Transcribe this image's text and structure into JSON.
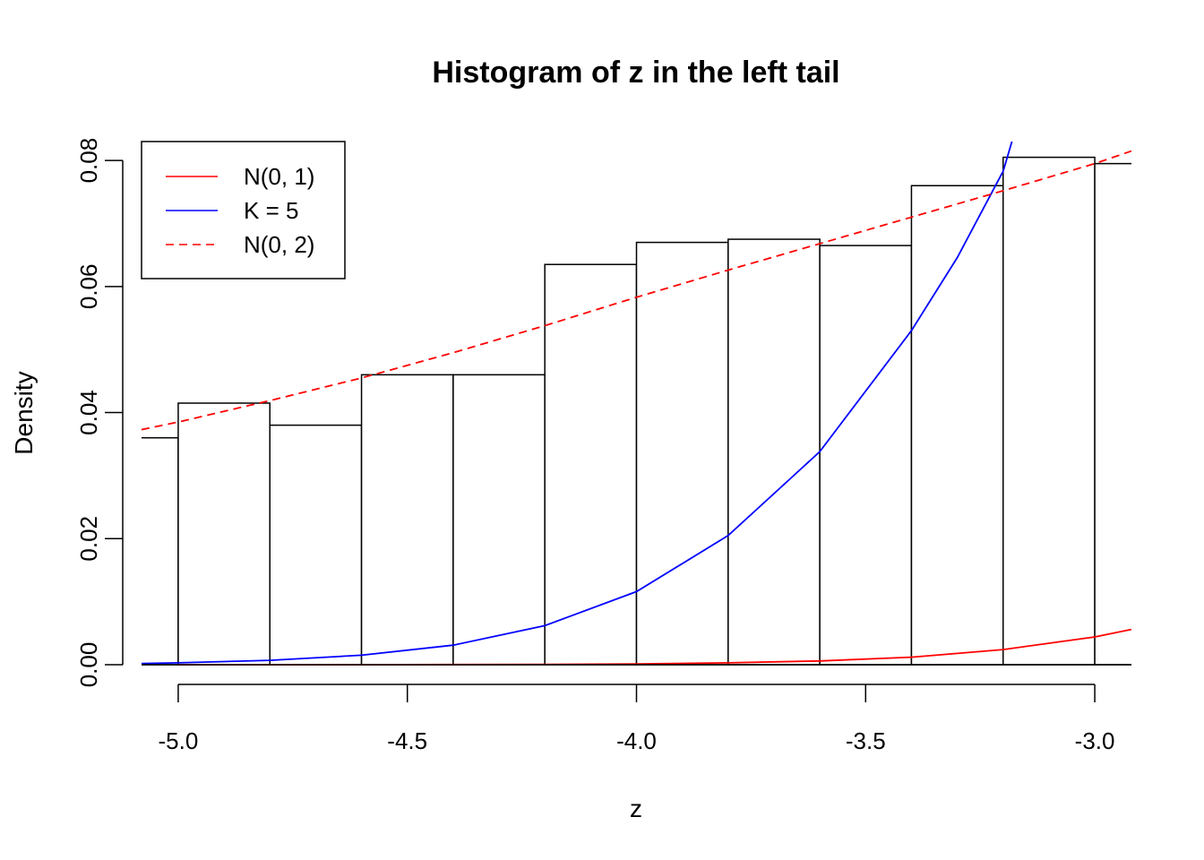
{
  "chart_data": {
    "type": "histogram",
    "title": "Histogram of z in the left tail",
    "xlabel": "z",
    "ylabel": "Density",
    "xlim": [
      -5.08,
      -2.92
    ],
    "ylim": [
      0,
      0.083
    ],
    "x_ticks": [
      -5.0,
      -4.5,
      -4.0,
      -3.5,
      -3.0
    ],
    "x_tick_labels": [
      "-5.0",
      "-4.5",
      "-4.0",
      "-3.5",
      "-3.0"
    ],
    "y_ticks": [
      0.0,
      0.02,
      0.04,
      0.06,
      0.08
    ],
    "y_tick_labels": [
      "0.00",
      "0.02",
      "0.04",
      "0.06",
      "0.08"
    ],
    "grid": false,
    "bins": [
      {
        "x0": -5.2,
        "x1": -5.0,
        "density": 0.036
      },
      {
        "x0": -5.0,
        "x1": -4.8,
        "density": 0.0415
      },
      {
        "x0": -4.8,
        "x1": -4.6,
        "density": 0.038
      },
      {
        "x0": -4.6,
        "x1": -4.4,
        "density": 0.046
      },
      {
        "x0": -4.4,
        "x1": -4.2,
        "density": 0.046
      },
      {
        "x0": -4.2,
        "x1": -4.0,
        "density": 0.0635
      },
      {
        "x0": -4.0,
        "x1": -3.8,
        "density": 0.067
      },
      {
        "x0": -3.8,
        "x1": -3.6,
        "density": 0.0675
      },
      {
        "x0": -3.6,
        "x1": -3.4,
        "density": 0.0665
      },
      {
        "x0": -3.4,
        "x1": -3.2,
        "density": 0.076
      },
      {
        "x0": -3.2,
        "x1": -3.0,
        "density": 0.0805
      },
      {
        "x0": -3.0,
        "x1": -2.8,
        "density": 0.0795
      }
    ],
    "legend_position": "top-left",
    "legend": [
      {
        "label": "N(0, 1)",
        "color": "#ff0000",
        "dash": "solid"
      },
      {
        "label": "K = 5",
        "color": "#0000ff",
        "dash": "solid"
      },
      {
        "label": "N(0, 2)",
        "color": "#ff0000",
        "dash": "dashed"
      }
    ],
    "series": [
      {
        "name": "N(0, 1)",
        "color": "#ff0000",
        "dash": "solid",
        "x": [
          -5.0,
          -4.8,
          -4.6,
          -4.4,
          -4.2,
          -4.0,
          -3.8,
          -3.6,
          -3.4,
          -3.2,
          -3.0,
          -2.92
        ],
        "y": [
          0.0,
          0.0,
          0.0,
          3e-05,
          6e-05,
          0.00013,
          0.0003,
          0.0006,
          0.0012,
          0.0024,
          0.0044,
          0.0056
        ]
      },
      {
        "name": "K = 5",
        "color": "#0000ff",
        "dash": "solid",
        "x": [
          -5.08,
          -5.0,
          -4.8,
          -4.6,
          -4.4,
          -4.2,
          -4.0,
          -3.8,
          -3.6,
          -3.4,
          -3.3,
          -3.2,
          -3.18
        ],
        "y": [
          0.0002,
          0.0003,
          0.0007,
          0.0015,
          0.0031,
          0.0062,
          0.0116,
          0.0205,
          0.0338,
          0.053,
          0.0646,
          0.0783,
          0.0832
        ]
      },
      {
        "name": "N(0, 2)",
        "color": "#ff0000",
        "dash": "dashed",
        "x": [
          -5.08,
          -5.0,
          -4.8,
          -4.6,
          -4.4,
          -4.2,
          -4.0,
          -3.8,
          -3.6,
          -3.4,
          -3.2,
          -3.0,
          -2.92
        ],
        "y": [
          0.0373,
          0.0385,
          0.0419,
          0.0455,
          0.0495,
          0.0538,
          0.0583,
          0.0626,
          0.0668,
          0.071,
          0.0752,
          0.0795,
          0.0815
        ]
      }
    ]
  }
}
